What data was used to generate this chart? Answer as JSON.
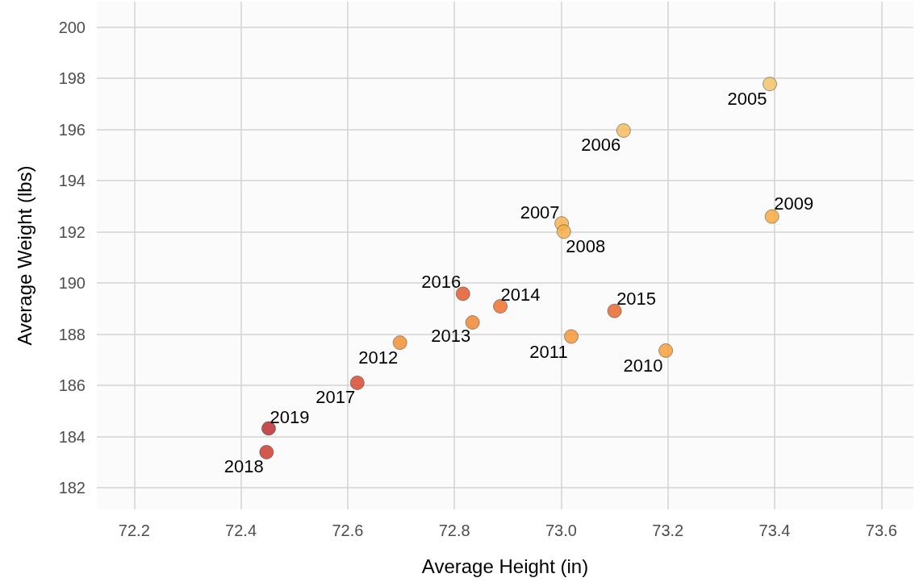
{
  "chart_data": {
    "type": "scatter",
    "xlabel": "Average Height (in)",
    "ylabel": "Average Weight (lbs)",
    "x": [
      73.391,
      73.117,
      73.001,
      73.005,
      73.395,
      73.196,
      73.019,
      72.698,
      72.834,
      72.886,
      73.1,
      72.816,
      72.618,
      72.448,
      72.452
    ],
    "values": [
      197.78,
      195.96,
      192.33,
      192.01,
      192.6,
      187.36,
      187.91,
      187.67,
      188.46,
      189.09,
      188.91,
      189.58,
      186.1,
      183.39,
      184.32
    ],
    "colors": [
      "#f2c063",
      "#f5b955",
      "#f7b047",
      "#f7ac42",
      "#f9a535",
      "#f89a2e",
      "#f6922a",
      "#f38a27",
      "#f07f25",
      "#ec6a22",
      "#e65f22",
      "#e25022",
      "#d74024",
      "#c83222",
      "#b82222"
    ],
    "annotations": [
      {
        "text": "2005",
        "x": 73.391,
        "y": 197.78
      },
      {
        "text": "2006",
        "x": 73.117,
        "y": 195.96
      },
      {
        "text": "2007",
        "x": 73.001,
        "y": 192.33
      },
      {
        "text": "2008",
        "x": 73.005,
        "y": 192.01
      },
      {
        "text": "2009",
        "x": 73.395,
        "y": 192.6
      },
      {
        "text": "2010",
        "x": 73.196,
        "y": 187.36
      },
      {
        "text": "2011",
        "x": 73.019,
        "y": 187.91
      },
      {
        "text": "2012",
        "x": 72.698,
        "y": 187.67
      },
      {
        "text": "2013",
        "x": 72.834,
        "y": 188.46
      },
      {
        "text": "2014",
        "x": 72.886,
        "y": 189.09
      },
      {
        "text": "2015",
        "x": 73.1,
        "y": 188.91
      },
      {
        "text": "2016",
        "x": 72.816,
        "y": 189.58
      },
      {
        "text": "2017",
        "x": 72.618,
        "y": 186.1
      },
      {
        "text": "2018",
        "x": 72.448,
        "y": 183.39
      },
      {
        "text": "2019",
        "x": 72.452,
        "y": 184.32
      }
    ],
    "xlim": [
      72.13,
      73.66
    ],
    "xticks": [
      72.2,
      72.4,
      72.6,
      72.8,
      {
        "value": 73,
        "label": "73.0"
      },
      73.2,
      73.4,
      73.6
    ],
    "ylim": [
      181.15,
      201
    ],
    "yticks": [
      182,
      184,
      186,
      188,
      190,
      192,
      194,
      196,
      198,
      200
    ],
    "grid": true,
    "marker": "circle"
  }
}
